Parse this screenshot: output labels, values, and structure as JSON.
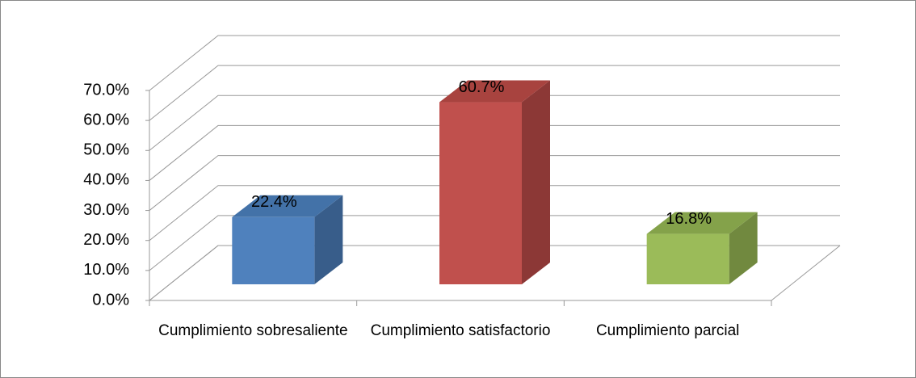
{
  "chart_data": {
    "type": "bar3d",
    "categories": [
      "Cumplimiento sobresaliente",
      "Cumplimiento satisfactorio",
      "Cumplimiento parcial"
    ],
    "values": [
      22.4,
      60.7,
      16.8
    ],
    "value_labels": [
      "22.4%",
      "60.7%",
      "16.8%"
    ],
    "colors": [
      "#4f81bd",
      "#c0504d",
      "#9bbb59"
    ],
    "side_colors": [
      "#385d8a",
      "#8c3836",
      "#71893f"
    ],
    "top_colors": [
      "#4372a8",
      "#a8433f",
      "#84a24a"
    ],
    "ylim": [
      0,
      70
    ],
    "yticks": [
      {
        "value": 0,
        "label": "0.0%"
      },
      {
        "value": 10,
        "label": "10.0%"
      },
      {
        "value": 20,
        "label": "20.0%"
      },
      {
        "value": 30,
        "label": "30.0%"
      },
      {
        "value": 40,
        "label": "40.0%"
      },
      {
        "value": 50,
        "label": "50.0%"
      },
      {
        "value": 60,
        "label": "60.0%"
      },
      {
        "value": 70,
        "label": "70.0%"
      }
    ],
    "grid": true
  }
}
